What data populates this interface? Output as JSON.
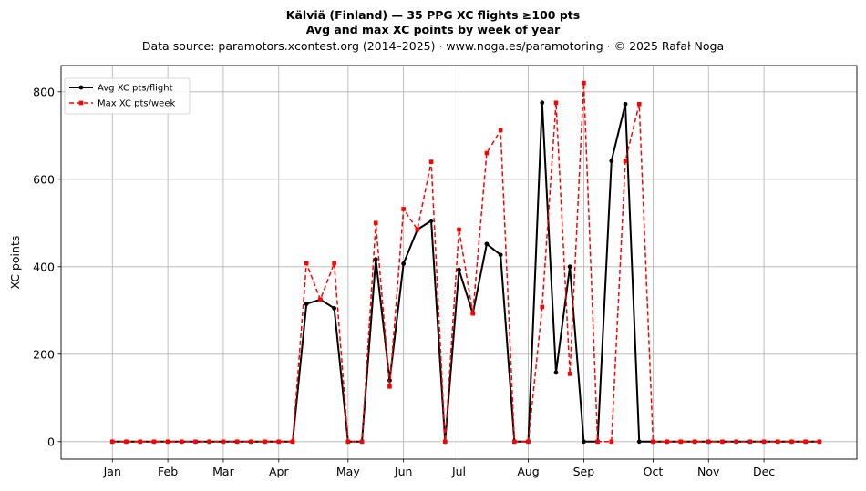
{
  "chart_data": {
    "type": "line",
    "title": "Kälviä (Finland)  —  35 PPG XC flights ≥100 pts",
    "subtitle": "Avg and max XC points by week of year",
    "source_line": "Data source: paramotors.xcontest.org (2014–2025)  ·  www.noga.es/paramotoring  ·  © 2025 Rafał Noga",
    "xlabel": "",
    "ylabel": "XC points",
    "ylim": [
      -40,
      860
    ],
    "xlim": [
      -2.7,
      54.7
    ],
    "yticks": [
      0,
      200,
      400,
      600,
      800
    ],
    "xticks": [
      {
        "label": "Jan",
        "week": 1
      },
      {
        "label": "Feb",
        "week": 5
      },
      {
        "label": "Mar",
        "week": 9
      },
      {
        "label": "Apr",
        "week": 13
      },
      {
        "label": "May",
        "week": 18
      },
      {
        "label": "Jun",
        "week": 22
      },
      {
        "label": "Jul",
        "week": 26
      },
      {
        "label": "Aug",
        "week": 31
      },
      {
        "label": "Sep",
        "week": 35
      },
      {
        "label": "Oct",
        "week": 40
      },
      {
        "label": "Nov",
        "week": 44
      },
      {
        "label": "Dec",
        "week": 48
      }
    ],
    "grid": true,
    "legend_position": "top-left",
    "x": [
      1,
      2,
      3,
      4,
      5,
      6,
      7,
      8,
      9,
      10,
      11,
      12,
      13,
      14,
      15,
      16,
      17,
      18,
      19,
      20,
      21,
      22,
      23,
      24,
      25,
      26,
      27,
      28,
      29,
      30,
      31,
      32,
      33,
      34,
      35,
      36,
      37,
      38,
      39,
      40,
      41,
      42,
      43,
      44,
      45,
      46,
      47,
      48,
      49,
      50,
      51,
      52
    ],
    "series": [
      {
        "name": "Avg XC pts/flight",
        "color": "#000000",
        "style": "solid-circle",
        "values": [
          0,
          0,
          0,
          0,
          0,
          0,
          0,
          0,
          0,
          0,
          0,
          0,
          0,
          0,
          315,
          325,
          305,
          0,
          0,
          417,
          140,
          407,
          485,
          505,
          0,
          393,
          293,
          452,
          427,
          0,
          0,
          775,
          158,
          400,
          0,
          0,
          642,
          772,
          0,
          0,
          0,
          0,
          0,
          0,
          0,
          0,
          0,
          0,
          0,
          0,
          0,
          0
        ]
      },
      {
        "name": "Max XC pts/week",
        "color": "#ff0000",
        "style": "dashed-square",
        "values": [
          0,
          0,
          0,
          0,
          0,
          0,
          0,
          0,
          0,
          0,
          0,
          0,
          0,
          0,
          408,
          325,
          408,
          0,
          0,
          500,
          126,
          532,
          485,
          640,
          0,
          485,
          293,
          660,
          712,
          0,
          0,
          308,
          775,
          155,
          820,
          0,
          0,
          642,
          772,
          0,
          0,
          0,
          0,
          0,
          0,
          0,
          0,
          0,
          0,
          0,
          0,
          0
        ]
      }
    ]
  }
}
